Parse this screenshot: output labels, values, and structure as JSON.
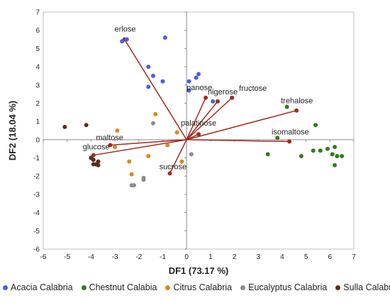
{
  "chart_data": {
    "type": "scatter",
    "title": "",
    "xlabel": "DF1 (73.17 %)",
    "ylabel": "DF2 (18.04 %)",
    "xlim": [
      -6,
      7
    ],
    "ylim": [
      -6,
      7
    ],
    "xticks": [
      "-6",
      "-5",
      "-4",
      "-3",
      "-2",
      "-1",
      "0",
      "1",
      "2",
      "3",
      "4",
      "5",
      "6",
      "7"
    ],
    "yticks": [
      "-6",
      "-5",
      "-4",
      "-3",
      "-2",
      "-1",
      "0",
      "1",
      "2",
      "3",
      "4",
      "5",
      "6",
      "7"
    ],
    "grid": false,
    "legend_position": "bottom",
    "series": [
      {
        "name": "Acacia Calabria",
        "color": "#4a5ee8",
        "points": [
          [
            -2.7,
            5.4
          ],
          [
            -2.5,
            5.5
          ],
          [
            -0.9,
            5.6
          ],
          [
            -1.6,
            4.0
          ],
          [
            -1.4,
            3.5
          ],
          [
            -1.6,
            2.9
          ],
          [
            -1.0,
            3.2
          ],
          [
            0.1,
            3.2
          ],
          [
            0.4,
            3.4
          ],
          [
            0.5,
            3.6
          ],
          [
            1.1,
            2.1
          ],
          [
            0.1,
            2.7
          ]
        ]
      },
      {
        "name": "Chestnut Calabia",
        "color": "#2e7d1e",
        "points": [
          [
            3.8,
            0.1
          ],
          [
            4.2,
            1.8
          ],
          [
            5.4,
            0.8
          ],
          [
            3.4,
            -0.8
          ],
          [
            4.8,
            -0.9
          ],
          [
            5.3,
            -0.6
          ],
          [
            5.6,
            -0.6
          ],
          [
            5.9,
            -0.5
          ],
          [
            6.2,
            -0.4
          ],
          [
            6.1,
            -0.8
          ],
          [
            6.3,
            -0.9
          ],
          [
            6.5,
            -0.9
          ],
          [
            6.2,
            -1.4
          ]
        ]
      },
      {
        "name": "Citrus  Calabria",
        "color": "#d58a1c",
        "points": [
          [
            -2.9,
            0.5
          ],
          [
            -1.3,
            1.4
          ],
          [
            -0.4,
            0.4
          ],
          [
            -0.8,
            -0.3
          ],
          [
            -0.2,
            -1.2
          ],
          [
            -1.6,
            -0.9
          ],
          [
            -2.4,
            -1.2
          ],
          [
            -2.3,
            -1.9
          ],
          [
            -3.0,
            -0.4
          ]
        ]
      },
      {
        "name": "Eucalyptus Calabria",
        "color": "#8c8c8c",
        "points": [
          [
            -1.4,
            0.9
          ],
          [
            -2.3,
            -2.5
          ],
          [
            -2.2,
            -2.5
          ],
          [
            -1.8,
            -2.1
          ],
          [
            -1.8,
            -2.2
          ],
          [
            0.2,
            -0.8
          ]
        ]
      },
      {
        "name": "Sulla Calabria",
        "color": "#5a2d1e",
        "points": [
          [
            -5.1,
            0.7
          ],
          [
            -4.2,
            0.8
          ],
          [
            -3.9,
            -1.1
          ],
          [
            -3.8,
            -1.35
          ],
          [
            -3.9,
            -1.35
          ],
          [
            -3.7,
            -1.4
          ],
          [
            -3.7,
            -1.2
          ],
          [
            -4.0,
            -1.0
          ]
        ]
      }
    ],
    "vectors": {
      "color": "#a52a1f",
      "items": [
        {
          "label": "erlose",
          "x": -2.6,
          "y": 5.5
        },
        {
          "label": "panose",
          "x": 0.8,
          "y": 2.3
        },
        {
          "label": "nigerose",
          "x": 1.3,
          "y": 2.1
        },
        {
          "label": "fructose",
          "x": 1.9,
          "y": 2.3
        },
        {
          "label": "trehalose",
          "x": 4.6,
          "y": 1.6
        },
        {
          "label": "palatinose",
          "x": 0.5,
          "y": 0.3
        },
        {
          "label": "isomaltose",
          "x": 4.3,
          "y": -0.1
        },
        {
          "label": "maltose",
          "x": -3.2,
          "y": -0.3
        },
        {
          "label": "glucose",
          "x": -3.9,
          "y": -0.85
        },
        {
          "label": "sucrose",
          "x": -0.7,
          "y": -1.85
        }
      ]
    }
  },
  "legend": {
    "items": [
      {
        "label": "Acacia Calabria",
        "color": "#4a5ee8"
      },
      {
        "label": "Chestnut Calabia",
        "color": "#2e7d1e"
      },
      {
        "label": "Citrus  Calabria",
        "color": "#d58a1c"
      },
      {
        "label": "Eucalyptus Calabria",
        "color": "#8c8c8c"
      },
      {
        "label": "Sulla Calabria",
        "color": "#5a2d1e"
      }
    ]
  }
}
